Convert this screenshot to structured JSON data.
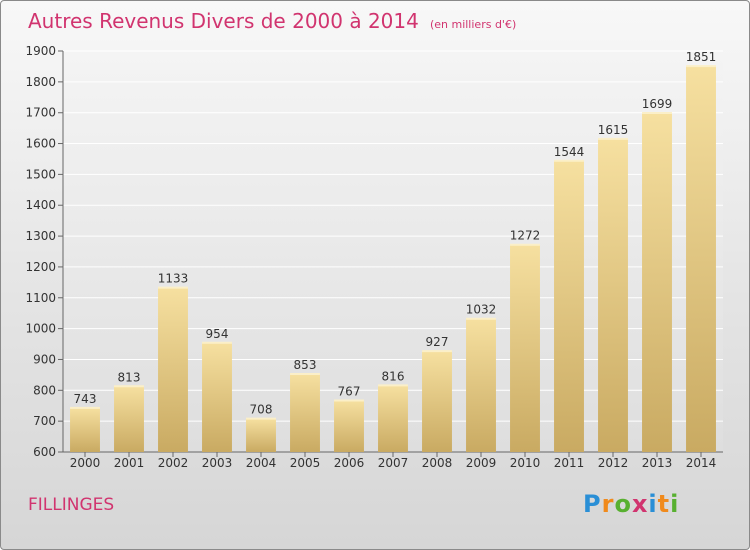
{
  "title": "Autres Revenus Divers de 2000 à 2014",
  "subtitle": "(en milliers d'€)",
  "commune": "FILLINGES",
  "logo": {
    "letters": [
      "P",
      "r",
      "o",
      "x",
      "i",
      "t",
      "i"
    ],
    "colors": [
      "#2a8fd6",
      "#f08a1c",
      "#58b030",
      "#d1346f",
      "#2a8fd6",
      "#f08a1c",
      "#58b030"
    ]
  },
  "colors": {
    "accent": "#d1346f",
    "bar_light": "#f6e0a0",
    "bar_dark": "#c9aa62"
  },
  "chart_data": {
    "type": "bar",
    "categories": [
      "2000",
      "2001",
      "2002",
      "2003",
      "2004",
      "2005",
      "2006",
      "2007",
      "2008",
      "2009",
      "2010",
      "2011",
      "2012",
      "2013",
      "2014"
    ],
    "values": [
      743,
      813,
      1133,
      954,
      708,
      853,
      767,
      816,
      927,
      1032,
      1272,
      1544,
      1615,
      1699,
      1851
    ],
    "ylim": [
      600,
      1900
    ],
    "yticks": [
      600,
      700,
      800,
      900,
      1000,
      1100,
      1200,
      1300,
      1400,
      1500,
      1600,
      1700,
      1800,
      1900
    ],
    "grid": true,
    "data_labels": true
  }
}
